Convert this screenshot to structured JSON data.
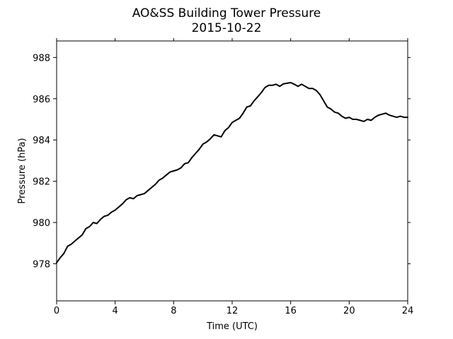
{
  "chart_data": {
    "type": "line",
    "title": "AO&SS Building Tower Pressure",
    "subtitle": "2015-10-22",
    "xlabel": "Time (UTC)",
    "ylabel": "Pressure (hPa)",
    "xlim": [
      0,
      24
    ],
    "ylim": [
      976.2,
      988.8
    ],
    "xticks": [
      0,
      4,
      8,
      12,
      16,
      20,
      24
    ],
    "yticks": [
      978,
      980,
      982,
      984,
      986,
      988
    ],
    "grid": false,
    "series_color": "#000000",
    "series": [
      {
        "x": [
          0,
          0.25,
          0.5,
          0.75,
          1.0,
          1.25,
          1.5,
          1.75,
          2.0,
          2.25,
          2.5,
          2.75,
          3.0,
          3.25,
          3.5,
          3.75,
          4.0,
          4.25,
          4.5,
          4.75,
          5.0,
          5.25,
          5.5,
          5.75,
          6.0,
          6.25,
          6.5,
          6.75,
          7.0,
          7.25,
          7.5,
          7.75,
          8.0,
          8.25,
          8.5,
          8.75,
          9.0,
          9.25,
          9.5,
          9.75,
          10.0,
          10.25,
          10.5,
          10.75,
          11.0,
          11.25,
          11.5,
          11.75,
          12.0,
          12.25,
          12.5,
          12.75,
          13.0,
          13.25,
          13.5,
          13.75,
          14.0,
          14.25,
          14.5,
          14.75,
          15.0,
          15.25,
          15.5,
          15.75,
          16.0,
          16.25,
          16.5,
          16.75,
          17.0,
          17.25,
          17.5,
          17.75,
          18.0,
          18.25,
          18.5,
          18.75,
          19.0,
          19.25,
          19.5,
          19.75,
          20.0,
          20.25,
          20.5,
          20.75,
          21.0,
          21.25,
          21.5,
          21.75,
          22.0,
          22.25,
          22.5,
          22.75,
          23.0,
          23.25,
          23.5,
          23.75,
          24.0
        ],
        "y": [
          978.05,
          978.3,
          978.5,
          978.85,
          978.95,
          979.1,
          979.25,
          979.4,
          979.7,
          979.8,
          980.0,
          979.95,
          980.15,
          980.3,
          980.35,
          980.5,
          980.6,
          980.75,
          980.9,
          981.1,
          981.2,
          981.15,
          981.3,
          981.35,
          981.4,
          981.55,
          981.7,
          981.85,
          982.05,
          982.15,
          982.3,
          982.45,
          982.5,
          982.55,
          982.65,
          982.85,
          982.9,
          983.15,
          983.35,
          983.55,
          983.8,
          983.9,
          984.05,
          984.25,
          984.2,
          984.15,
          984.45,
          984.6,
          984.85,
          984.95,
          985.05,
          985.3,
          985.6,
          985.65,
          985.9,
          986.1,
          986.3,
          986.55,
          986.65,
          986.65,
          986.7,
          986.6,
          986.72,
          986.75,
          986.78,
          986.7,
          986.6,
          986.7,
          986.6,
          986.5,
          986.5,
          986.4,
          986.2,
          985.9,
          985.6,
          985.5,
          985.35,
          985.3,
          985.15,
          985.05,
          985.1,
          985.0,
          985.0,
          984.95,
          984.9,
          985.0,
          984.95,
          985.1,
          985.2,
          985.25,
          985.3,
          985.2,
          985.15,
          985.1,
          985.15,
          985.1,
          985.1
        ]
      }
    ]
  }
}
